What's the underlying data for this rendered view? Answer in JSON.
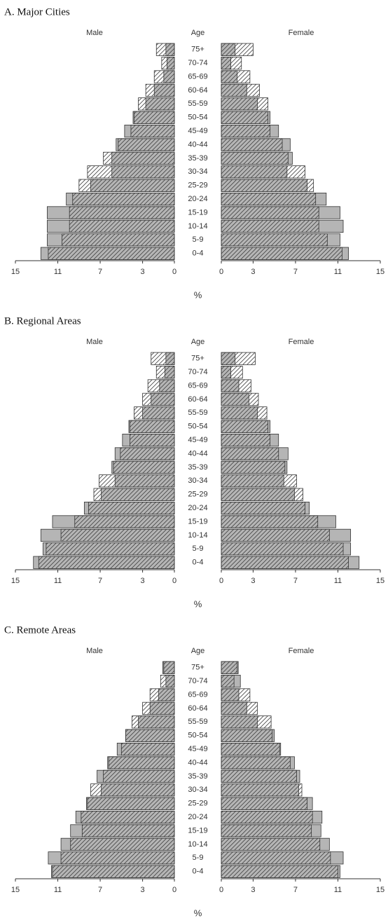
{
  "chart_data": [
    {
      "type": "pyramid",
      "title": "A. Major Cities",
      "left_label": "Male",
      "right_label": "Female",
      "category_label": "Age",
      "xlabel": "%",
      "categories": [
        "75+",
        "70-74",
        "65-69",
        "60-64",
        "55-59",
        "50-54",
        "45-49",
        "40-44",
        "35-39",
        "30-34",
        "25-29",
        "20-24",
        "15-19",
        "10-14",
        "5-9",
        "0-4"
      ],
      "xlim": [
        0,
        15
      ],
      "xticks": [
        0,
        3,
        7,
        11,
        15
      ],
      "series": [
        {
          "side": "left",
          "pattern": "solid",
          "color": "#b5b5b5",
          "values": [
            0.8,
            0.7,
            1.0,
            1.9,
            2.7,
            3.9,
            4.7,
            5.5,
            5.9,
            5.9,
            7.9,
            10.2,
            12.0,
            12.0,
            12.0,
            12.6
          ]
        },
        {
          "side": "left",
          "pattern": "hatch",
          "color": "#444444",
          "values": [
            1.7,
            1.2,
            1.9,
            2.7,
            3.4,
            3.8,
            4.1,
            5.3,
            6.7,
            8.2,
            9.0,
            9.6,
            9.9,
            9.9,
            10.6,
            11.9
          ]
        },
        {
          "side": "right",
          "pattern": "solid",
          "color": "#b5b5b5",
          "values": [
            1.3,
            0.9,
            1.5,
            2.4,
            3.4,
            4.6,
            5.4,
            6.5,
            6.7,
            6.2,
            8.1,
            9.9,
            11.2,
            11.5,
            11.2,
            12.0
          ]
        },
        {
          "side": "right",
          "pattern": "hatch",
          "color": "#444444",
          "values": [
            3.0,
            1.9,
            2.7,
            3.6,
            4.4,
            4.4,
            4.6,
            5.75,
            6.3,
            7.9,
            8.7,
            8.9,
            9.2,
            9.2,
            10.0,
            11.4
          ]
        }
      ]
    },
    {
      "type": "pyramid",
      "title": "B. Regional Areas",
      "left_label": "Male",
      "right_label": "Female",
      "category_label": "Age",
      "xlabel": "%",
      "categories": [
        "75+",
        "70-74",
        "65-69",
        "60-64",
        "55-59",
        "50-54",
        "45-49",
        "40-44",
        "35-39",
        "30-34",
        "25-29",
        "20-24",
        "15-19",
        "10-14",
        "5-9",
        "0-4"
      ],
      "xlim": [
        0,
        15
      ],
      "xticks": [
        0,
        3,
        7,
        11,
        15
      ],
      "series": [
        {
          "side": "left",
          "pattern": "solid",
          "color": "#b5b5b5",
          "values": [
            0.8,
            0.9,
            1.4,
            2.2,
            3.0,
            4.3,
            4.9,
            5.6,
            5.9,
            5.6,
            6.9,
            8.5,
            11.5,
            12.6,
            12.4,
            13.3
          ]
        },
        {
          "side": "left",
          "pattern": "hatch",
          "color": "#444444",
          "values": [
            2.2,
            1.7,
            2.5,
            3.0,
            3.8,
            4.2,
            4.2,
            5.1,
            5.75,
            7.1,
            7.6,
            8.1,
            9.4,
            10.7,
            12.1,
            12.8
          ]
        },
        {
          "side": "right",
          "pattern": "solid",
          "color": "#b5b5b5",
          "values": [
            1.3,
            0.9,
            1.65,
            2.6,
            3.4,
            4.6,
            5.4,
            6.3,
            6.2,
            5.9,
            6.9,
            8.3,
            10.8,
            12.2,
            12.2,
            13.0
          ]
        },
        {
          "side": "right",
          "pattern": "hatch",
          "color": "#444444",
          "values": [
            3.2,
            2.0,
            2.8,
            3.5,
            4.3,
            4.4,
            4.6,
            5.4,
            6.0,
            7.1,
            7.7,
            7.9,
            9.1,
            10.2,
            11.5,
            12.0
          ]
        }
      ]
    },
    {
      "type": "pyramid",
      "title": "C. Remote Areas",
      "left_label": "Male",
      "right_label": "Female",
      "category_label": "Age",
      "xlabel": "%",
      "categories": [
        "75+",
        "70-74",
        "65-69",
        "60-64",
        "55-59",
        "50-54",
        "45-49",
        "40-44",
        "35-39",
        "30-34",
        "25-29",
        "20-24",
        "15-19",
        "10-14",
        "5-9",
        "0-4"
      ],
      "xlim": [
        0,
        15
      ],
      "xticks": [
        0,
        3,
        7,
        11,
        15
      ],
      "series": [
        {
          "side": "left",
          "pattern": "solid",
          "color": "#b5b5b5",
          "values": [
            1.1,
            0.8,
            1.5,
            2.3,
            3.4,
            4.6,
            5.4,
            6.3,
            7.3,
            6.9,
            8.3,
            9.3,
            9.8,
            10.7,
            11.9,
            11.6
          ]
        },
        {
          "side": "left",
          "pattern": "hatch",
          "color": "#444444",
          "values": [
            1.0,
            1.3,
            2.3,
            3.0,
            4.0,
            4.6,
            5.0,
            6.2,
            6.7,
            7.9,
            8.2,
            8.8,
            8.7,
            9.8,
            10.7,
            11.5
          ]
        },
        {
          "side": "right",
          "pattern": "solid",
          "color": "#b5b5b5",
          "values": [
            1.6,
            1.8,
            1.65,
            2.4,
            3.4,
            5.0,
            5.6,
            6.9,
            7.4,
            7.3,
            8.6,
            9.5,
            9.4,
            10.2,
            11.5,
            11.2
          ]
        },
        {
          "side": "right",
          "pattern": "hatch",
          "color": "#444444",
          "values": [
            1.5,
            1.2,
            2.7,
            3.4,
            4.7,
            4.8,
            5.5,
            6.5,
            7.1,
            7.6,
            8.1,
            8.6,
            8.5,
            9.3,
            10.3,
            11.0
          ]
        }
      ]
    }
  ]
}
